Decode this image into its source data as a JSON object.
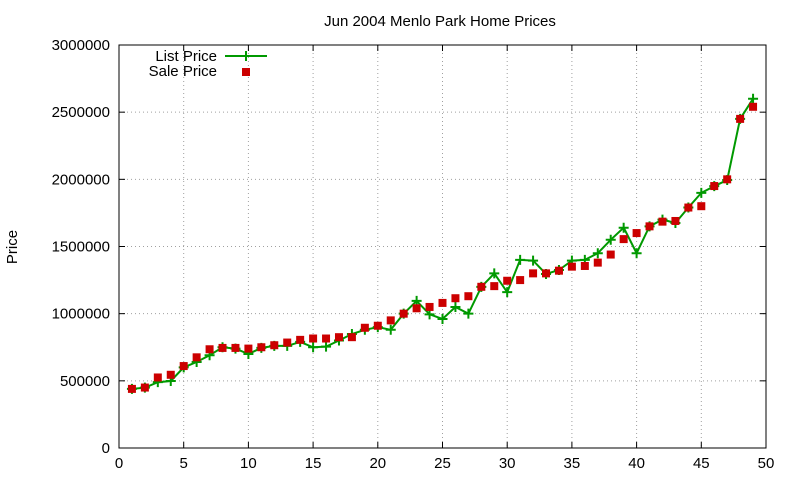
{
  "chart_data": {
    "type": "line",
    "title": "Jun 2004 Menlo Park Home Prices",
    "xlabel": "",
    "ylabel": "Price",
    "xlim": [
      0,
      50
    ],
    "ylim": [
      0,
      3000000
    ],
    "xticks": [
      "0",
      "5",
      "10",
      "15",
      "20",
      "25",
      "30",
      "35",
      "40",
      "45",
      "50"
    ],
    "yticks": [
      "0",
      "500000",
      "1000000",
      "1500000",
      "2000000",
      "2500000",
      "3000000"
    ],
    "grid": true,
    "legend_position": "top-left",
    "x": [
      1,
      2,
      3,
      4,
      5,
      6,
      7,
      8,
      9,
      10,
      11,
      12,
      13,
      14,
      15,
      16,
      17,
      18,
      19,
      20,
      21,
      22,
      23,
      24,
      25,
      26,
      27,
      28,
      29,
      30,
      31,
      32,
      33,
      34,
      35,
      36,
      37,
      38,
      39,
      40,
      41,
      42,
      43,
      44,
      45,
      46,
      47,
      48,
      49
    ],
    "series": [
      {
        "name": "List Price",
        "style": "line+cross",
        "color": "#009900",
        "values": [
          440000,
          449000,
          490000,
          499000,
          600000,
          640000,
          690000,
          750000,
          740000,
          700000,
          745000,
          760000,
          760000,
          790000,
          750000,
          755000,
          800000,
          849000,
          880000,
          900000,
          880000,
          1000000,
          1095000,
          995000,
          960000,
          1050000,
          1000000,
          1199000,
          1300000,
          1160000,
          1400000,
          1395000,
          1295000,
          1325000,
          1395000,
          1400000,
          1450000,
          1550000,
          1640000,
          1450000,
          1650000,
          1700000,
          1675000,
          1790000,
          1899000,
          1949000,
          1995000,
          2450000,
          2600000
        ]
      },
      {
        "name": "Sale Price",
        "style": "square",
        "color": "#cc0000",
        "values": [
          440000,
          450000,
          525000,
          545000,
          610000,
          675000,
          735000,
          745000,
          745000,
          740000,
          750000,
          765000,
          785000,
          805000,
          815000,
          815000,
          825000,
          825000,
          895000,
          910000,
          950000,
          1000000,
          1040000,
          1050000,
          1080000,
          1115000,
          1130000,
          1200000,
          1205000,
          1245000,
          1250000,
          1300000,
          1300000,
          1320000,
          1350000,
          1355000,
          1380000,
          1440000,
          1555000,
          1600000,
          1650000,
          1685000,
          1690000,
          1790000,
          1800000,
          1950000,
          2000000,
          2450000,
          2540000
        ]
      }
    ]
  }
}
